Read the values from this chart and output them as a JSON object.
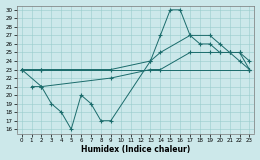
{
  "xlabel": "Humidex (Indice chaleur)",
  "background_color": "#cce8ea",
  "grid_color": "#99cccc",
  "line_color": "#1a6b6b",
  "xlim": [
    -0.5,
    23.5
  ],
  "ylim": [
    15.5,
    30.5
  ],
  "xticks": [
    0,
    1,
    2,
    3,
    4,
    5,
    6,
    7,
    8,
    9,
    10,
    11,
    12,
    13,
    14,
    15,
    16,
    17,
    18,
    19,
    20,
    21,
    22,
    23
  ],
  "yticks": [
    16,
    17,
    18,
    19,
    20,
    21,
    22,
    23,
    24,
    25,
    26,
    27,
    28,
    29,
    30
  ],
  "series": [
    {
      "x": [
        0,
        2,
        23
      ],
      "y": [
        23,
        23,
        23
      ]
    },
    {
      "x": [
        0,
        2,
        3,
        4,
        5,
        6,
        7,
        8,
        9,
        13,
        14,
        15,
        16,
        17,
        18,
        19,
        20,
        21,
        22,
        23
      ],
      "y": [
        23,
        21,
        19,
        18,
        16,
        20,
        19,
        17,
        17,
        24,
        27,
        30,
        30,
        27,
        26,
        26,
        25,
        25,
        24,
        23
      ]
    },
    {
      "x": [
        0,
        2,
        9,
        13,
        14,
        17,
        19,
        20,
        21,
        22,
        23
      ],
      "y": [
        23,
        23,
        23,
        24,
        25,
        27,
        27,
        26,
        25,
        25,
        24
      ]
    },
    {
      "x": [
        1,
        2,
        9,
        13,
        14,
        17,
        19,
        20,
        21,
        22,
        23
      ],
      "y": [
        21,
        21,
        22,
        23,
        23,
        25,
        25,
        25,
        25,
        25,
        23
      ]
    }
  ]
}
